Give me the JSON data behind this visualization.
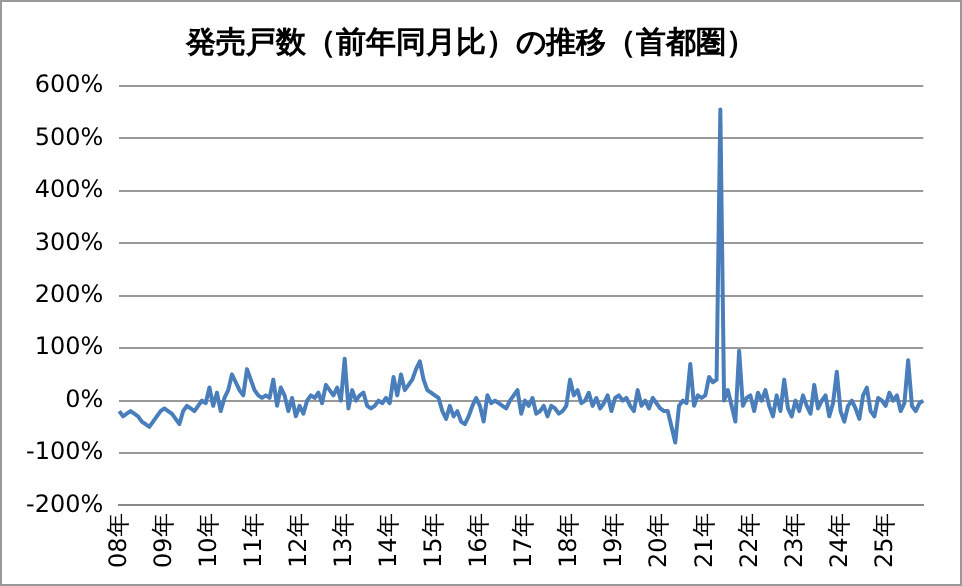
{
  "chart_data": {
    "type": "line",
    "title": "発売戸数（前年同月比）の推移（首都圏）",
    "categories": [
      "08年",
      null,
      null,
      null,
      null,
      null,
      null,
      null,
      null,
      null,
      null,
      null,
      "09年",
      null,
      null,
      null,
      null,
      null,
      null,
      null,
      null,
      null,
      null,
      null,
      "10年",
      null,
      null,
      null,
      null,
      null,
      null,
      null,
      null,
      null,
      null,
      null,
      "11年",
      null,
      null,
      null,
      null,
      null,
      null,
      null,
      null,
      null,
      null,
      null,
      "12年",
      null,
      null,
      null,
      null,
      null,
      null,
      null,
      null,
      null,
      null,
      null,
      "13年",
      null,
      null,
      null,
      null,
      null,
      null,
      null,
      null,
      null,
      null,
      null,
      "14年",
      null,
      null,
      null,
      null,
      null,
      null,
      null,
      null,
      null,
      null,
      null,
      "15年",
      null,
      null,
      null,
      null,
      null,
      null,
      null,
      null,
      null,
      null,
      null,
      "16年",
      null,
      null,
      null,
      null,
      null,
      null,
      null,
      null,
      null,
      null,
      null,
      "17年",
      null,
      null,
      null,
      null,
      null,
      null,
      null,
      null,
      null,
      null,
      null,
      "18年",
      null,
      null,
      null,
      null,
      null,
      null,
      null,
      null,
      null,
      null,
      null,
      "19年",
      null,
      null,
      null,
      null,
      null,
      null,
      null,
      null,
      null,
      null,
      null,
      "20年",
      null,
      null,
      null,
      null,
      null,
      null,
      null,
      null,
      null,
      null,
      null,
      "21年",
      null,
      null,
      null,
      null,
      null,
      null,
      null,
      null,
      null,
      null,
      null,
      "22年",
      null,
      null,
      null,
      null,
      null,
      null,
      null,
      null,
      null,
      null,
      null,
      "23年",
      null,
      null,
      null,
      null,
      null,
      null,
      null,
      null,
      null,
      null,
      null,
      "24年",
      null,
      null,
      null,
      null,
      null,
      null,
      null,
      null,
      null,
      null,
      null,
      "25年",
      null,
      null,
      null,
      null,
      null,
      null,
      null,
      null,
      null,
      null
    ],
    "series": [
      {
        "color": "#4a7ebb",
        "values": [
          -20,
          -30,
          -25,
          -20,
          -25,
          -30,
          -40,
          -45,
          -50,
          -40,
          -30,
          -20,
          -15,
          -20,
          -25,
          -35,
          -45,
          -20,
          -10,
          -15,
          -20,
          -10,
          0,
          -5,
          25,
          -10,
          15,
          -20,
          5,
          20,
          50,
          35,
          20,
          10,
          60,
          40,
          20,
          10,
          5,
          10,
          5,
          40,
          -10,
          25,
          10,
          -20,
          5,
          -30,
          -10,
          -25,
          0,
          10,
          5,
          15,
          -5,
          30,
          20,
          10,
          25,
          0,
          80,
          -15,
          20,
          0,
          10,
          15,
          -10,
          -15,
          -10,
          0,
          -5,
          5,
          -5,
          45,
          10,
          50,
          20,
          30,
          40,
          60,
          75,
          40,
          20,
          15,
          10,
          5,
          -20,
          -35,
          -10,
          -30,
          -20,
          -40,
          -45,
          -30,
          -10,
          5,
          -10,
          -40,
          10,
          -5,
          0,
          -5,
          -10,
          -15,
          0,
          10,
          20,
          -25,
          0,
          -10,
          5,
          -25,
          -20,
          -10,
          -30,
          -10,
          -15,
          -25,
          -20,
          -10,
          40,
          10,
          20,
          -5,
          0,
          15,
          -10,
          5,
          -15,
          -5,
          10,
          -20,
          5,
          10,
          0,
          5,
          -10,
          -20,
          20,
          -10,
          0,
          -15,
          5,
          -5,
          -15,
          -20,
          -20,
          -50,
          -80,
          -10,
          0,
          -5,
          70,
          -10,
          10,
          5,
          10,
          45,
          35,
          40,
          555,
          0,
          20,
          -10,
          -40,
          95,
          -10,
          5,
          10,
          -20,
          15,
          0,
          20,
          -10,
          -30,
          10,
          -20,
          40,
          -15,
          -30,
          0,
          -20,
          10,
          -10,
          -25,
          30,
          -15,
          0,
          10,
          -30,
          -5,
          55,
          -20,
          -40,
          -10,
          0,
          -15,
          -35,
          10,
          25,
          -20,
          -30,
          5,
          0,
          -10,
          15,
          0,
          10,
          -20,
          -5,
          77,
          -10,
          -20,
          -5,
          0
        ]
      }
    ],
    "ylim": [
      -200,
      600
    ],
    "yticks": [
      {
        "value": -200,
        "label": "-200%"
      },
      {
        "value": -100,
        "label": "-100%"
      },
      {
        "value": 0,
        "label": "0%"
      },
      {
        "value": 100,
        "label": "100%"
      },
      {
        "value": 200,
        "label": "200%"
      },
      {
        "value": 300,
        "label": "300%"
      },
      {
        "value": 400,
        "label": "400%"
      },
      {
        "value": 500,
        "label": "500%"
      },
      {
        "value": 600,
        "label": "600%"
      }
    ],
    "grid": "y",
    "legend": false,
    "marker": "none",
    "line_style": "solid"
  }
}
